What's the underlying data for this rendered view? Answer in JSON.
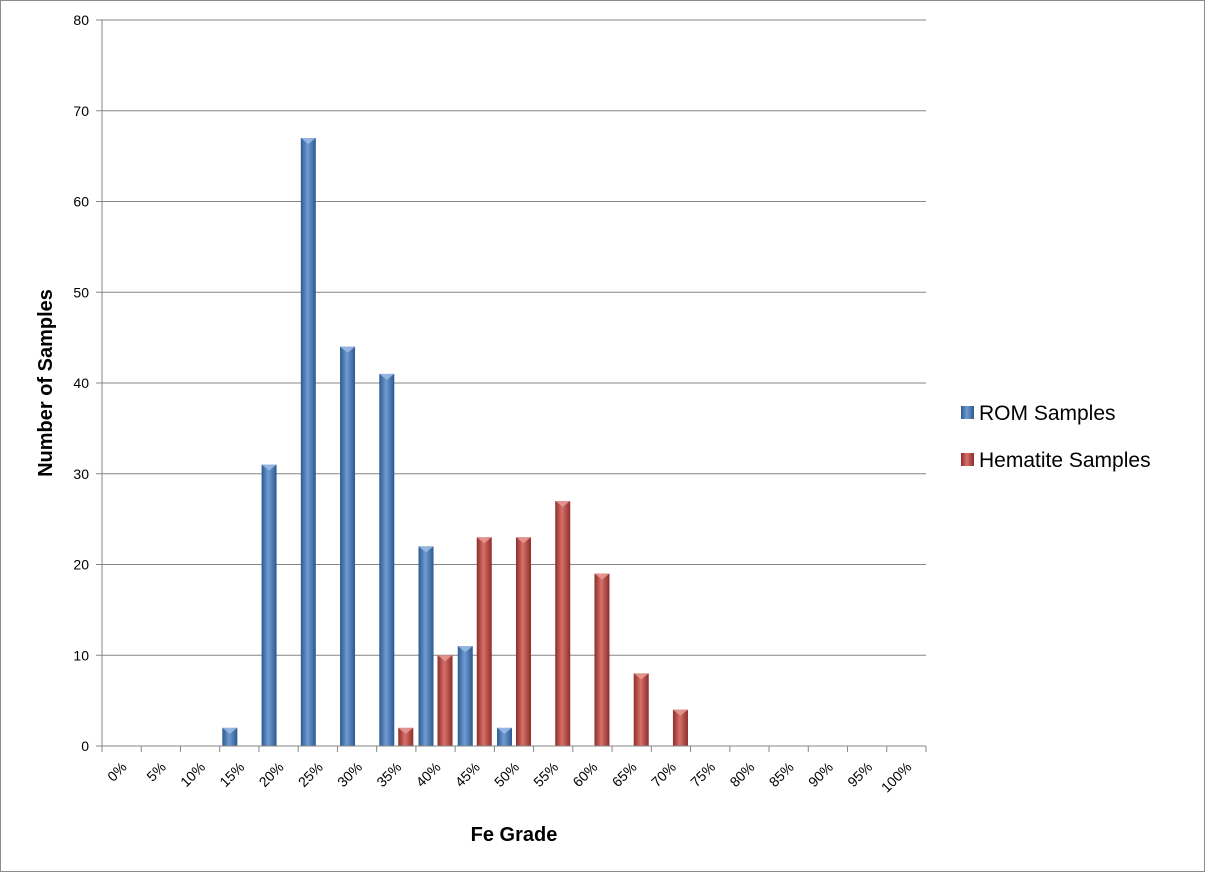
{
  "chart_data": {
    "type": "bar",
    "categories": [
      "0%",
      "5%",
      "10%",
      "15%",
      "20%",
      "25%",
      "30%",
      "35%",
      "40%",
      "45%",
      "50%",
      "55%",
      "60%",
      "65%",
      "70%",
      "75%",
      "80%",
      "85%",
      "90%",
      "95%",
      "100%"
    ],
    "series": [
      {
        "name": "ROM Samples",
        "color": "#4a7ebb",
        "values": [
          0,
          0,
          0,
          2,
          31,
          67,
          44,
          41,
          22,
          11,
          2,
          0,
          0,
          0,
          0,
          0,
          0,
          0,
          0,
          0,
          0
        ]
      },
      {
        "name": "Hematite Samples",
        "color": "#c0504d",
        "values": [
          0,
          0,
          0,
          0,
          0,
          0,
          0,
          2,
          10,
          23,
          23,
          27,
          19,
          8,
          4,
          0,
          0,
          0,
          0,
          0,
          0
        ]
      }
    ],
    "xlabel": "Fe Grade",
    "ylabel": "Number of Samples",
    "ylim": [
      0,
      80
    ],
    "yticks": [
      "0",
      "10",
      "20",
      "30",
      "40",
      "50",
      "60",
      "70",
      "80"
    ],
    "grid": true,
    "legend_position": "right"
  }
}
